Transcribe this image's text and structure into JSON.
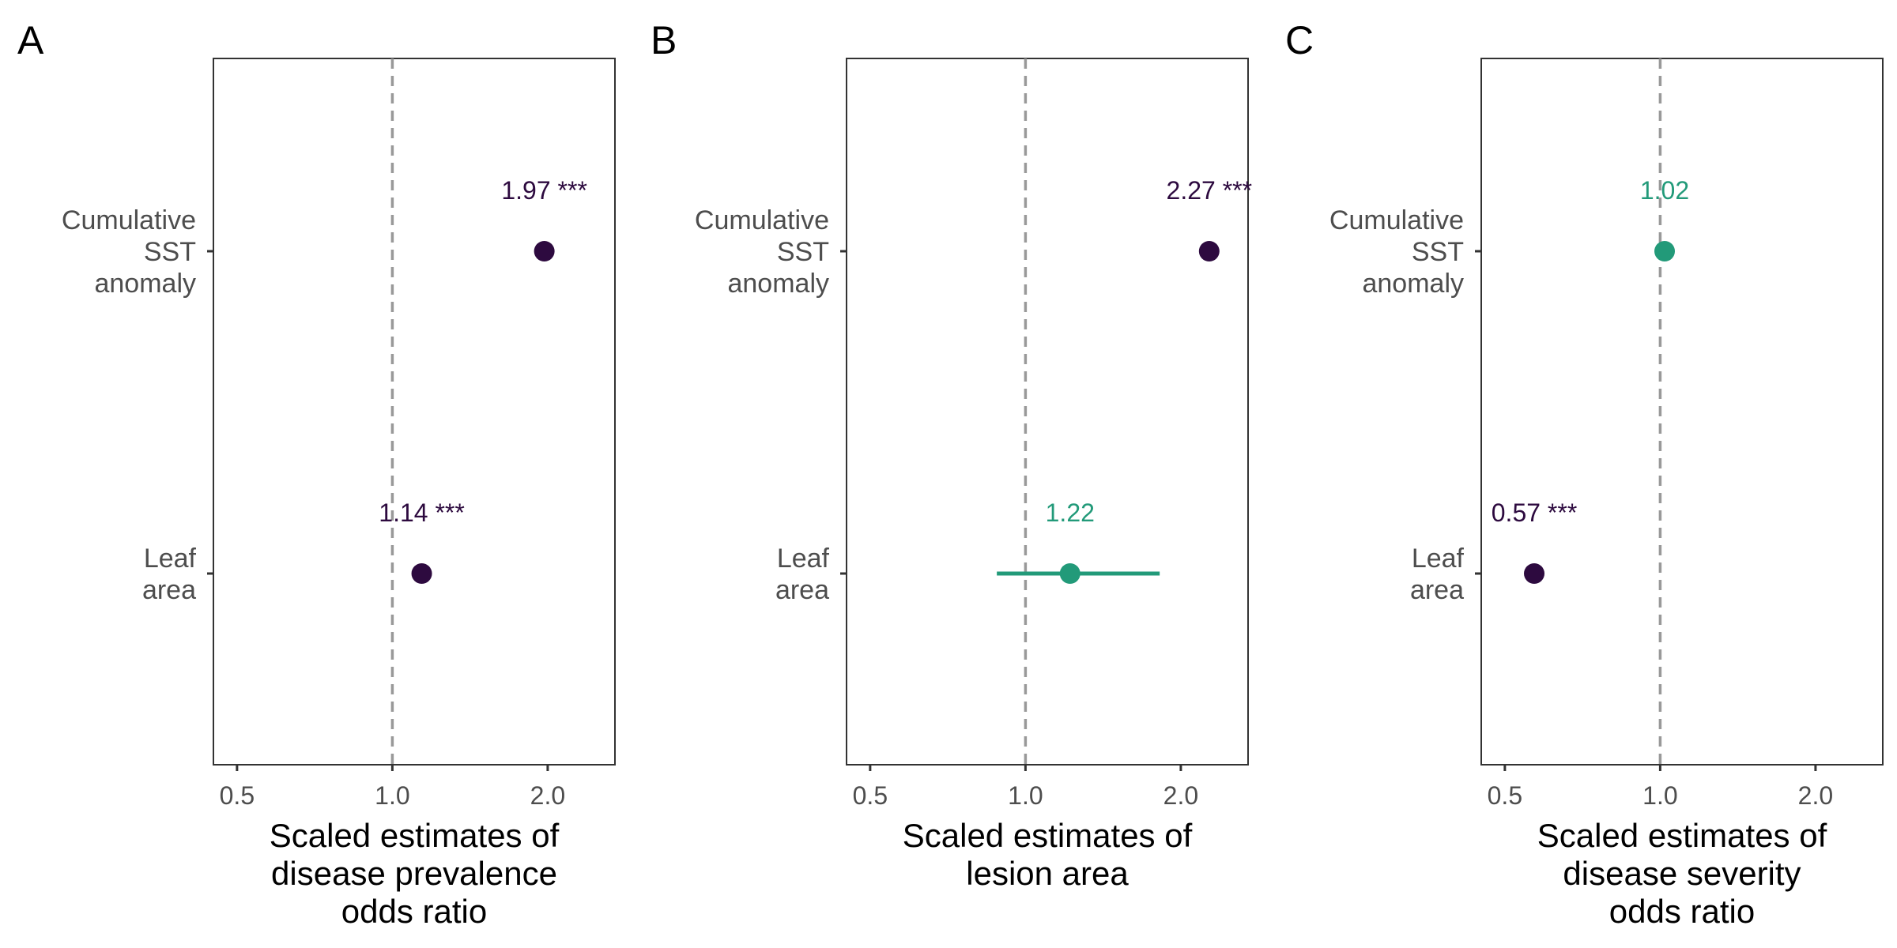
{
  "colors": {
    "significant": "#2d0a3f",
    "not_significant": "#229a79",
    "reference_line": "#999999",
    "axis": "#333333",
    "text": "#4d4d4d"
  },
  "chart_data": [
    {
      "type": "scatter",
      "panel": "A",
      "x_scale": "log",
      "xlabel": [
        "Scaled estimates of",
        "disease prevalence",
        "odds ratio"
      ],
      "xlim": [
        0.45,
        2.7
      ],
      "xticks": [
        "0.5",
        "1.0",
        "2.0"
      ],
      "xtick_values": [
        0.5,
        1.0,
        2.0
      ],
      "reference_line_x": 1.0,
      "grid": false,
      "categories": [
        [
          "Cumulative",
          "SST",
          "anomaly"
        ],
        [
          "Leaf",
          "area"
        ]
      ],
      "points": [
        {
          "x": 1.97,
          "label": "1.97 ***",
          "significant": true
        },
        {
          "x": 1.14,
          "label": "1.14 ***",
          "significant": true
        }
      ]
    },
    {
      "type": "scatter",
      "panel": "B",
      "x_scale": "log",
      "xlabel": [
        "Scaled estimates of",
        "lesion area"
      ],
      "xlim": [
        0.45,
        2.7
      ],
      "xticks": [
        "0.5",
        "1.0",
        "2.0"
      ],
      "xtick_values": [
        0.5,
        1.0,
        2.0
      ],
      "reference_line_x": 1.0,
      "grid": false,
      "categories": [
        [
          "Cumulative",
          "SST",
          "anomaly"
        ],
        [
          "Leaf",
          "area"
        ]
      ],
      "points": [
        {
          "x": 2.27,
          "label": "2.27 ***",
          "significant": true
        },
        {
          "x": 1.22,
          "label": "1.22",
          "significant": false,
          "ci": [
            0.88,
            1.82
          ]
        }
      ]
    },
    {
      "type": "scatter",
      "panel": "C",
      "x_scale": "log",
      "xlabel": [
        "Scaled estimates of",
        "disease severity",
        "odds ratio"
      ],
      "xlim": [
        0.45,
        2.7
      ],
      "xticks": [
        "0.5",
        "1.0",
        "2.0"
      ],
      "xtick_values": [
        0.5,
        1.0,
        2.0
      ],
      "reference_line_x": 1.0,
      "grid": false,
      "categories": [
        [
          "Cumulative",
          "SST",
          "anomaly"
        ],
        [
          "Leaf",
          "area"
        ]
      ],
      "points": [
        {
          "x": 1.02,
          "label": "1.02",
          "significant": false
        },
        {
          "x": 0.57,
          "label": "0.57 ***",
          "significant": true
        }
      ]
    }
  ]
}
